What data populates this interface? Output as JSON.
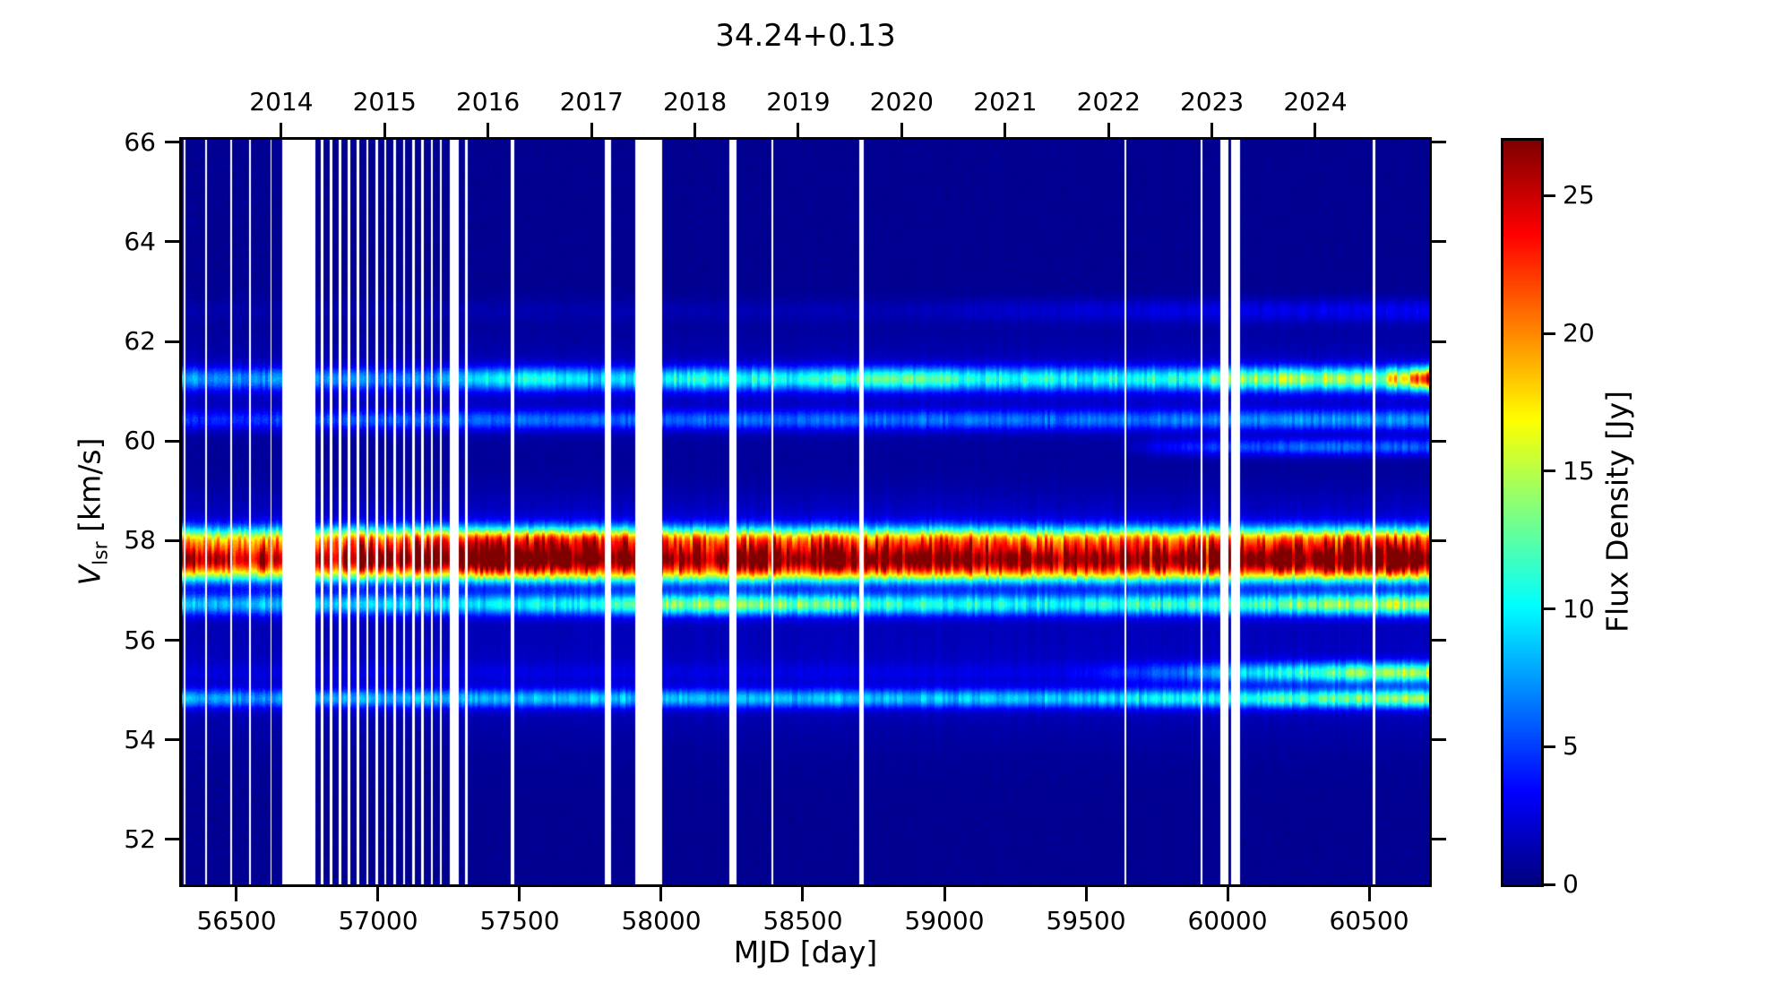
{
  "chart_data": {
    "type": "heatmap",
    "title": "34.24+0.13",
    "xlabel": "MJD [day]",
    "ylabel": {
      "var": "V",
      "sub": "lsr",
      "unit": " [km/s]"
    },
    "x_range": [
      56307,
      60712
    ],
    "y_range": [
      51.1,
      66.05
    ],
    "x_ticks": [
      56500,
      57000,
      57500,
      58000,
      58500,
      59000,
      59500,
      60000,
      60500
    ],
    "y_ticks": [
      66,
      64,
      62,
      60,
      58,
      56,
      54,
      52
    ],
    "top_axis_ticks": [
      {
        "label": "2014",
        "mjd": 56658
      },
      {
        "label": "2015",
        "mjd": 57023
      },
      {
        "label": "2016",
        "mjd": 57388
      },
      {
        "label": "2017",
        "mjd": 57754
      },
      {
        "label": "2018",
        "mjd": 58119
      },
      {
        "label": "2019",
        "mjd": 58484
      },
      {
        "label": "2020",
        "mjd": 58849
      },
      {
        "label": "2021",
        "mjd": 59215
      },
      {
        "label": "2022",
        "mjd": 59580
      },
      {
        "label": "2023",
        "mjd": 59945
      },
      {
        "label": "2024",
        "mjd": 60310
      }
    ],
    "colorbar": {
      "label": "Flux Density [Jy]",
      "ticks": [
        0,
        5,
        10,
        15,
        20,
        25
      ],
      "vmin": 0,
      "vmax": 27,
      "colormap": "jet",
      "background_color": "#000083",
      "peak_color": "#800000"
    },
    "features": [
      {
        "name": "maser-57.6",
        "v": 57.62,
        "sigma": 0.2,
        "amp": [
          [
            56307,
            20
          ],
          [
            56600,
            21
          ],
          [
            56900,
            23
          ],
          [
            57200,
            24
          ],
          [
            57500,
            25
          ],
          [
            57800,
            23
          ],
          [
            58100,
            23
          ],
          [
            58400,
            24
          ],
          [
            58700,
            23
          ],
          [
            59000,
            24
          ],
          [
            59400,
            23
          ],
          [
            59800,
            22
          ],
          [
            60100,
            24
          ],
          [
            60400,
            24
          ],
          [
            60710,
            25
          ]
        ]
      },
      {
        "name": "maser-58.0",
        "v": 58.02,
        "sigma": 0.18,
        "amp": [
          [
            56307,
            13
          ],
          [
            57000,
            15
          ],
          [
            57500,
            17
          ],
          [
            58000,
            16
          ],
          [
            58500,
            15
          ],
          [
            59000,
            15
          ],
          [
            59500,
            14
          ],
          [
            60000,
            15
          ],
          [
            60710,
            16
          ]
        ]
      },
      {
        "name": "maser-57.3",
        "v": 57.32,
        "sigma": 0.15,
        "amp": [
          [
            56307,
            6
          ],
          [
            58000,
            8
          ],
          [
            60710,
            8
          ]
        ]
      },
      {
        "name": "maser-56.7",
        "v": 56.72,
        "sigma": 0.15,
        "amp": [
          [
            56307,
            7
          ],
          [
            56800,
            7
          ],
          [
            57300,
            8
          ],
          [
            57700,
            9
          ],
          [
            58000,
            12
          ],
          [
            58300,
            13
          ],
          [
            58600,
            11
          ],
          [
            59000,
            9
          ],
          [
            59400,
            9
          ],
          [
            59900,
            10
          ],
          [
            60200,
            11
          ],
          [
            60500,
            13
          ],
          [
            60710,
            13
          ]
        ]
      },
      {
        "name": "maser-54.8",
        "v": 54.83,
        "sigma": 0.13,
        "amp": [
          [
            56307,
            6
          ],
          [
            57500,
            7
          ],
          [
            58500,
            7
          ],
          [
            59500,
            7.5
          ],
          [
            60000,
            9
          ],
          [
            60400,
            11
          ],
          [
            60710,
            12
          ]
        ]
      },
      {
        "name": "maser-55.4",
        "v": 55.35,
        "sigma": 0.14,
        "amp": [
          [
            56307,
            0.8
          ],
          [
            59400,
            1
          ],
          [
            59700,
            3
          ],
          [
            59950,
            6
          ],
          [
            60200,
            9
          ],
          [
            60500,
            12
          ],
          [
            60710,
            13
          ]
        ]
      },
      {
        "name": "maser-61.2",
        "v": 61.25,
        "sigma": 0.16,
        "amp": [
          [
            56307,
            6
          ],
          [
            56700,
            6
          ],
          [
            57100,
            5
          ],
          [
            57400,
            8
          ],
          [
            57600,
            10
          ],
          [
            57750,
            7
          ],
          [
            57950,
            9
          ],
          [
            58150,
            10
          ],
          [
            58400,
            9
          ],
          [
            58650,
            10
          ],
          [
            58900,
            11
          ],
          [
            59200,
            9
          ],
          [
            59500,
            9
          ],
          [
            59800,
            9
          ],
          [
            60100,
            12
          ],
          [
            60350,
            13
          ],
          [
            60550,
            13
          ],
          [
            60660,
            18
          ],
          [
            60710,
            23
          ]
        ]
      },
      {
        "name": "maser-60.4",
        "v": 60.42,
        "sigma": 0.14,
        "amp": [
          [
            56307,
            3
          ],
          [
            56800,
            4
          ],
          [
            57300,
            5
          ],
          [
            58000,
            5
          ],
          [
            58800,
            5
          ],
          [
            59600,
            5
          ],
          [
            60200,
            6
          ],
          [
            60710,
            6
          ]
        ]
      },
      {
        "name": "maser-59.9",
        "v": 59.88,
        "sigma": 0.12,
        "amp": [
          [
            56307,
            0
          ],
          [
            59600,
            0
          ],
          [
            59750,
            2
          ],
          [
            59950,
            4
          ],
          [
            60200,
            5
          ],
          [
            60710,
            5
          ]
        ]
      },
      {
        "name": "maser-62.6",
        "v": 62.62,
        "sigma": 0.17,
        "amp": [
          [
            56307,
            0.5
          ],
          [
            58800,
            0.8
          ],
          [
            59300,
            1.5
          ],
          [
            59800,
            2
          ],
          [
            60710,
            2.5
          ]
        ]
      },
      {
        "name": "pedestal-57.8",
        "v": 57.8,
        "sigma": 0.75,
        "amp": [
          [
            56307,
            2
          ],
          [
            58000,
            2.5
          ],
          [
            60710,
            2.5
          ]
        ]
      },
      {
        "name": "pedestal-55.3",
        "v": 55.3,
        "sigma": 0.9,
        "amp": [
          [
            56307,
            1.2
          ],
          [
            60710,
            1.4
          ]
        ]
      },
      {
        "name": "pedestal-61.1",
        "v": 61.1,
        "sigma": 0.7,
        "amp": [
          [
            56307,
            1.0
          ],
          [
            58000,
            1.2
          ],
          [
            60710,
            1.5
          ]
        ]
      }
    ],
    "gaps": [
      [
        56312,
        56320
      ],
      [
        56390,
        56395
      ],
      [
        56478,
        56483
      ],
      [
        56545,
        56550
      ],
      [
        56620,
        56625
      ],
      [
        56660,
        56780
      ],
      [
        56797,
        56808
      ],
      [
        56830,
        56840
      ],
      [
        56862,
        56871
      ],
      [
        56893,
        56903
      ],
      [
        56925,
        56935
      ],
      [
        56958,
        56966
      ],
      [
        56990,
        57000
      ],
      [
        57022,
        57030
      ],
      [
        57055,
        57063
      ],
      [
        57088,
        57096
      ],
      [
        57120,
        57130
      ],
      [
        57153,
        57161
      ],
      [
        57186,
        57194
      ],
      [
        57218,
        57226
      ],
      [
        57252,
        57286
      ],
      [
        57308,
        57316
      ],
      [
        57468,
        57480
      ],
      [
        57800,
        57824
      ],
      [
        57908,
        58002
      ],
      [
        58240,
        58266
      ],
      [
        58388,
        58394
      ],
      [
        58700,
        58716
      ],
      [
        59636,
        59642
      ],
      [
        59906,
        59912
      ],
      [
        59976,
        60004
      ],
      [
        60014,
        60044
      ],
      [
        60514,
        60522
      ]
    ],
    "noise": {
      "background": 0.35,
      "speckle": 0.9,
      "column_jitter": 0.09,
      "band_jitter": 0.17,
      "early_era_end_mjd": 57320,
      "early_era_noise_boost": 1.6
    }
  }
}
